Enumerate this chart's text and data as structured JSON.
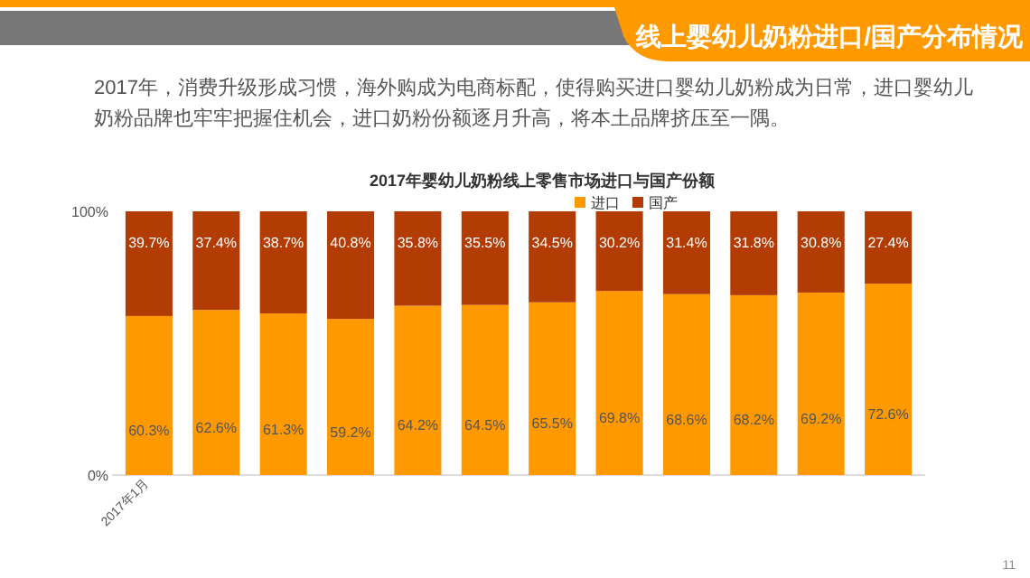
{
  "chart_data": {
    "type": "bar",
    "stacked": true,
    "title": "线上婴幼儿奶粉进口/国产分布情况",
    "subtitle": "2017年，消费升级形成习惯，海外购成为电商标配，使得购买进口婴幼儿奶粉成为日常，进口婴幼儿奶粉品牌也牢牢把握住机会，进口奶粉份额逐月升高，将本土品牌挤压至一隅。",
    "annotations": [
      "2017年婴幼儿奶粉线上零售市场进口与国产份额",
      "11"
    ],
    "categories": [
      "2017年1月",
      null,
      null,
      null,
      null,
      null,
      null,
      null,
      null,
      null,
      null,
      null
    ],
    "series": [
      {
        "name": "进口",
        "color": "#ff9900",
        "values": [
          60.3,
          62.6,
          61.3,
          59.2,
          64.2,
          64.5,
          65.5,
          69.8,
          68.6,
          68.2,
          69.2,
          72.6
        ],
        "value_labels": [
          "60.3%",
          "62.6%",
          "61.3%",
          "59.2%",
          "64.2%",
          "64.5%",
          "65.5%",
          "69.8%",
          "68.6%",
          "68.2%",
          "69.2%",
          "72.6%"
        ]
      },
      {
        "name": "国产",
        "color": "#b23c03",
        "values": [
          39.7,
          37.4,
          38.7,
          40.8,
          35.8,
          35.5,
          34.5,
          30.2,
          31.4,
          31.8,
          30.8,
          27.4
        ],
        "value_labels": [
          "39.7%",
          "37.4%",
          "38.7%",
          "40.8%",
          "35.8%",
          "35.5%",
          "34.5%",
          "30.2%",
          "31.4%",
          "31.8%",
          "30.8%",
          "27.4%"
        ]
      }
    ],
    "ylim": [
      0,
      100
    ],
    "yticks": [
      {
        "value": 0,
        "label": "0%"
      },
      {
        "value": 100,
        "label": "100%"
      }
    ],
    "legend": "top right"
  }
}
